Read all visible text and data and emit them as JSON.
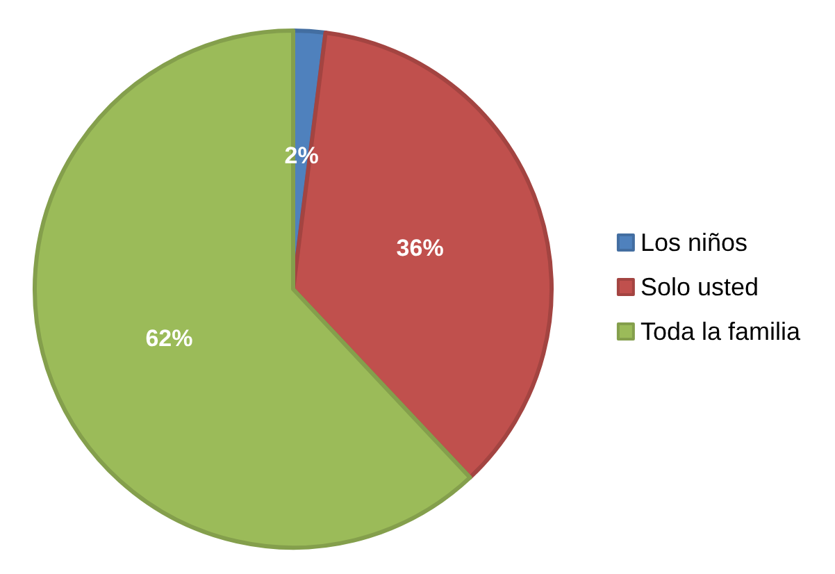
{
  "chart_data": {
    "type": "pie",
    "categories": [
      "Los niños",
      "Solo usted",
      "Toda la familia"
    ],
    "values": [
      2,
      36,
      62
    ],
    "colors": [
      "#4f81bd",
      "#c0504d",
      "#9bbb59"
    ],
    "value_labels": [
      "2%",
      "36%",
      "62%"
    ],
    "legend": "right"
  }
}
